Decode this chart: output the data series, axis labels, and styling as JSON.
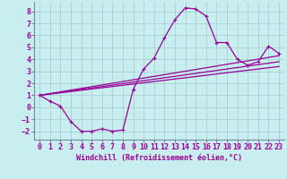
{
  "xlabel": "Windchill (Refroidissement éolien,°C)",
  "background_color": "#c8eef0",
  "grid_color": "#a8cfd4",
  "line_color": "#990099",
  "xlim": [
    -0.5,
    23.5
  ],
  "ylim": [
    -2.7,
    8.8
  ],
  "yticks": [
    -2,
    -1,
    0,
    1,
    2,
    3,
    4,
    5,
    6,
    7,
    8
  ],
  "xticks": [
    0,
    1,
    2,
    3,
    4,
    5,
    6,
    7,
    8,
    9,
    10,
    11,
    12,
    13,
    14,
    15,
    16,
    17,
    18,
    19,
    20,
    21,
    22,
    23
  ],
  "series1_x": [
    0,
    1,
    2,
    3,
    4,
    5,
    6,
    7,
    8,
    9,
    10,
    11,
    12,
    13,
    14,
    15,
    16,
    17,
    18,
    19,
    20,
    21,
    22,
    23
  ],
  "series1_y": [
    1.0,
    0.5,
    0.1,
    -1.2,
    -2.0,
    -2.0,
    -1.8,
    -2.0,
    -1.9,
    1.5,
    3.2,
    4.1,
    5.8,
    7.3,
    8.3,
    8.2,
    7.6,
    5.4,
    5.4,
    4.0,
    3.5,
    3.8,
    5.1,
    4.5
  ],
  "series2_x": [
    0,
    23
  ],
  "series2_y": [
    1.0,
    4.3
  ],
  "series3_x": [
    0,
    23
  ],
  "series3_y": [
    1.0,
    3.8
  ],
  "series4_x": [
    0,
    23
  ],
  "series4_y": [
    1.0,
    3.4
  ],
  "tick_fontsize": 6.0,
  "xlabel_fontsize": 6.0
}
